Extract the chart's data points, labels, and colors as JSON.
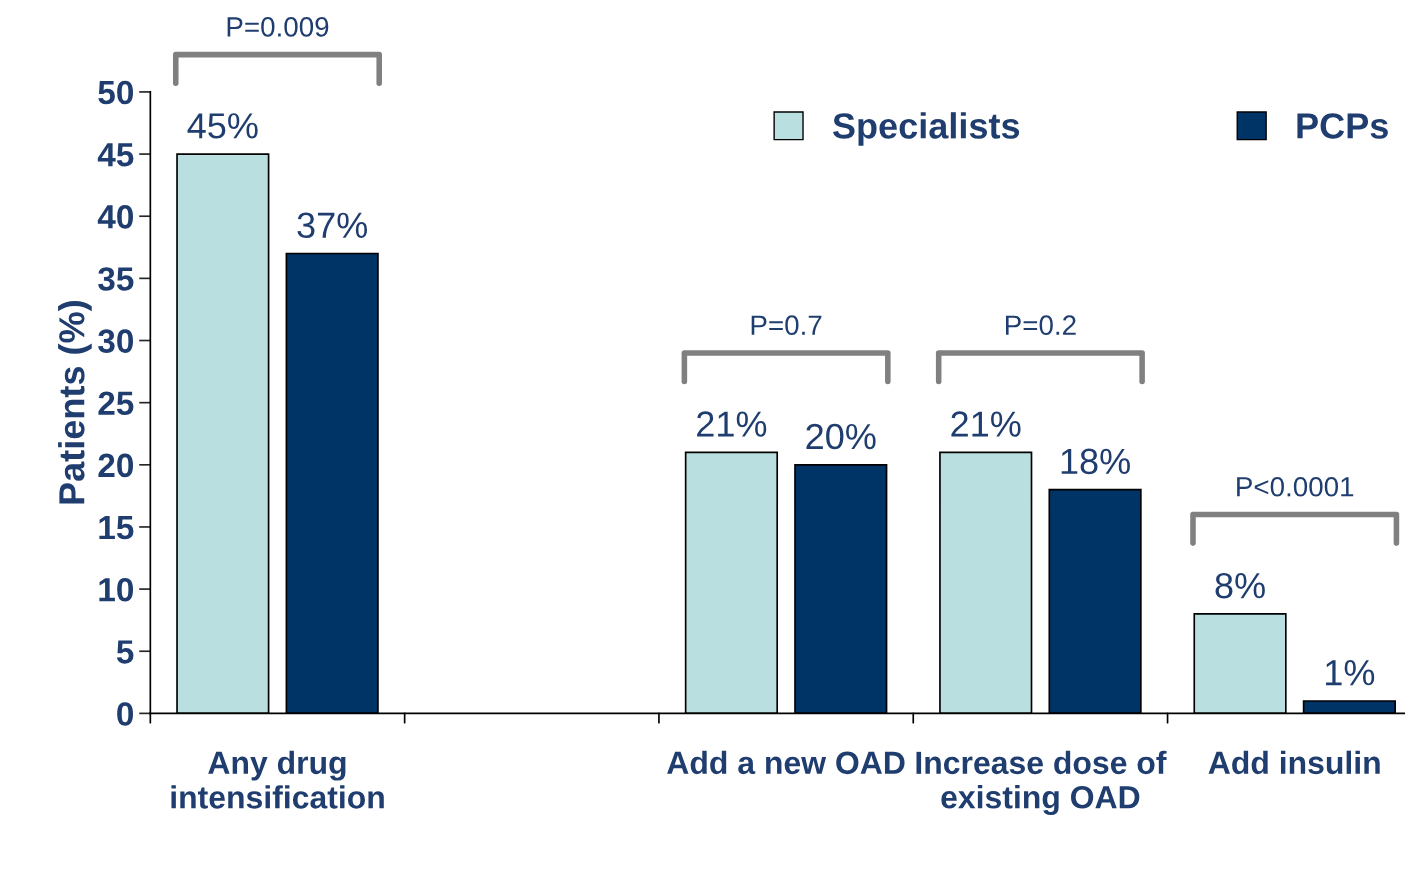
{
  "chart_data": {
    "type": "bar",
    "ylabel": "Patients (%)",
    "categories": [
      "Any drug intensification",
      null,
      "Add a new OAD",
      "Increase dose of existing OAD",
      "Add insulin"
    ],
    "series": [
      {
        "name": "Specialists",
        "color": "#b9dfe0",
        "values": [
          45,
          null,
          21,
          21,
          8
        ],
        "value_labels": [
          "45%",
          null,
          "21%",
          "21%",
          "8%"
        ]
      },
      {
        "name": "PCPs",
        "color": "#003366",
        "values": [
          37,
          null,
          20,
          18,
          1
        ],
        "value_labels": [
          "37%",
          null,
          "20%",
          "18%",
          "1%"
        ]
      }
    ],
    "ylim": [
      0,
      50
    ],
    "yticks": [
      0,
      5,
      10,
      15,
      20,
      25,
      30,
      35,
      40,
      45,
      50
    ],
    "grid": false,
    "legend": "top right",
    "annotations": [
      "P=0.009",
      "P=0.7",
      "P=0.2",
      "P<0.0001"
    ]
  }
}
